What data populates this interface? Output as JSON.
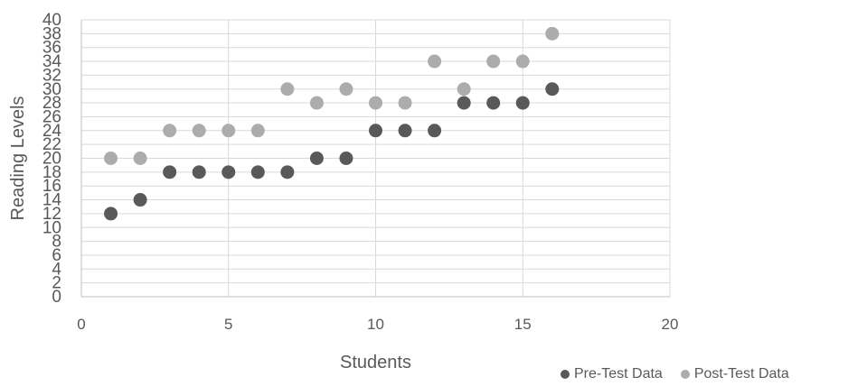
{
  "chart_data": {
    "type": "scatter",
    "title": "",
    "xlabel": "Students",
    "ylabel": "Reading Levels",
    "xlim": [
      0,
      20
    ],
    "ylim": [
      0,
      40
    ],
    "x_ticks": [
      0,
      5,
      10,
      15,
      20
    ],
    "y_ticks": [
      0,
      2,
      4,
      6,
      8,
      10,
      12,
      14,
      16,
      18,
      20,
      22,
      24,
      26,
      28,
      30,
      32,
      34,
      36,
      38,
      40
    ],
    "grid": true,
    "legend_position": "bottom-right",
    "series": [
      {
        "name": "Pre-Test Data",
        "color": "#595959",
        "x": [
          1,
          2,
          3,
          4,
          5,
          6,
          7,
          8,
          9,
          10,
          11,
          12,
          13,
          14,
          15,
          16
        ],
        "y": [
          12,
          14,
          18,
          18,
          18,
          18,
          18,
          20,
          20,
          24,
          24,
          24,
          28,
          28,
          28,
          30
        ]
      },
      {
        "name": "Post-Test Data",
        "color": "#acacac",
        "x": [
          1,
          2,
          3,
          4,
          5,
          6,
          7,
          8,
          9,
          10,
          11,
          12,
          13,
          14,
          15,
          16
        ],
        "y": [
          20,
          20,
          24,
          24,
          24,
          24,
          30,
          28,
          30,
          28,
          28,
          34,
          30,
          34,
          34,
          38
        ]
      }
    ]
  }
}
